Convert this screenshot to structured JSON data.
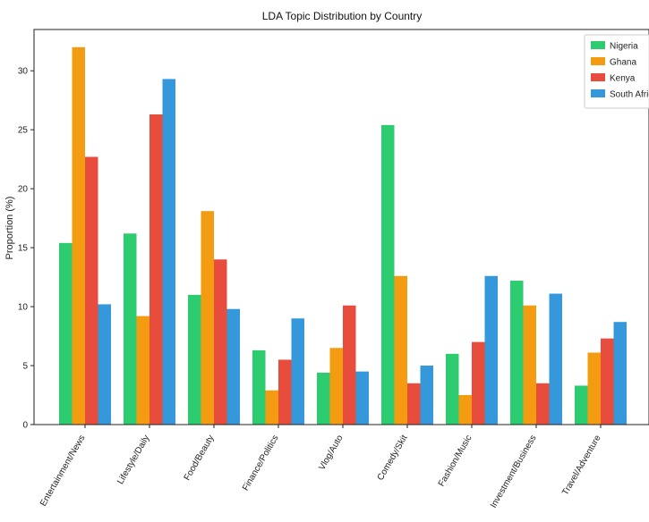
{
  "chart_data": {
    "type": "bar",
    "title": "LDA Topic Distribution by Country",
    "xlabel": "",
    "ylabel": "Proportion (%)",
    "ylim": [
      0,
      33.5
    ],
    "yticks": [
      0,
      5,
      10,
      15,
      20,
      25,
      30
    ],
    "grid": false,
    "legend_position": "top-right",
    "categories": [
      "Entertainment/News",
      "Lifestyle/Daily",
      "Food/Beauty",
      "Finance/Politics",
      "Vlog/Auto",
      "Comedy/Skit",
      "Fashion/Music",
      "Investment/Business",
      "Travel/Adventure"
    ],
    "series": [
      {
        "name": "Nigeria",
        "color": "#2ecc71",
        "values": [
          15.4,
          16.2,
          11.0,
          6.3,
          4.4,
          25.4,
          6.0,
          12.2,
          3.3
        ]
      },
      {
        "name": "Ghana",
        "color": "#f39c12",
        "values": [
          32.0,
          9.2,
          18.1,
          2.9,
          6.5,
          12.6,
          2.5,
          10.1,
          6.1
        ]
      },
      {
        "name": "Kenya",
        "color": "#e74c3c",
        "values": [
          22.7,
          26.3,
          14.0,
          5.5,
          10.1,
          3.5,
          7.0,
          3.5,
          7.3
        ]
      },
      {
        "name": "South Africa",
        "color": "#3498db",
        "values": [
          10.2,
          29.3,
          9.8,
          9.0,
          4.5,
          5.0,
          12.6,
          11.1,
          8.7
        ]
      }
    ]
  }
}
